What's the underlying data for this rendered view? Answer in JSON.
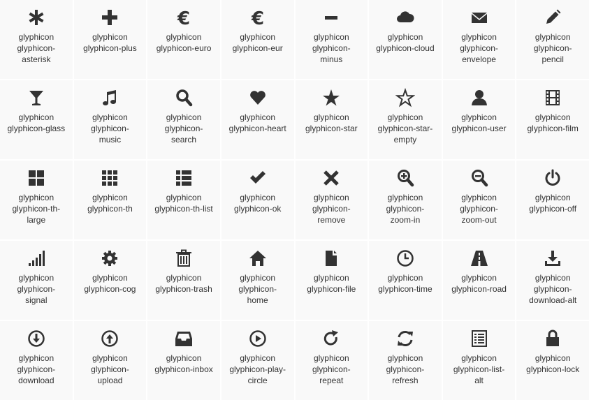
{
  "icons": [
    {
      "name": "asterisk",
      "label": "glyphicon glyphicon-asterisk",
      "lines": [
        "glyphicon",
        "glyphicon-",
        "asterisk"
      ]
    },
    {
      "name": "plus",
      "label": "glyphicon glyphicon-plus",
      "lines": [
        "glyphicon",
        "glyphicon-plus"
      ]
    },
    {
      "name": "euro",
      "label": "glyphicon glyphicon-euro",
      "lines": [
        "glyphicon",
        "glyphicon-euro"
      ]
    },
    {
      "name": "eur",
      "label": "glyphicon glyphicon-eur",
      "lines": [
        "glyphicon",
        "glyphicon-eur"
      ]
    },
    {
      "name": "minus",
      "label": "glyphicon glyphicon-minus",
      "lines": [
        "glyphicon",
        "glyphicon-",
        "minus"
      ]
    },
    {
      "name": "cloud",
      "label": "glyphicon glyphicon-cloud",
      "lines": [
        "glyphicon",
        "glyphicon-cloud"
      ]
    },
    {
      "name": "envelope",
      "label": "glyphicon glyphicon-envelope",
      "lines": [
        "glyphicon",
        "glyphicon-",
        "envelope"
      ]
    },
    {
      "name": "pencil",
      "label": "glyphicon glyphicon-pencil",
      "lines": [
        "glyphicon",
        "glyphicon-",
        "pencil"
      ]
    },
    {
      "name": "glass",
      "label": "glyphicon glyphicon-glass",
      "lines": [
        "glyphicon",
        "glyphicon-glass"
      ]
    },
    {
      "name": "music",
      "label": "glyphicon glyphicon-music",
      "lines": [
        "glyphicon",
        "glyphicon-",
        "music"
      ]
    },
    {
      "name": "search",
      "label": "glyphicon glyphicon-search",
      "lines": [
        "glyphicon",
        "glyphicon-",
        "search"
      ]
    },
    {
      "name": "heart",
      "label": "glyphicon glyphicon-heart",
      "lines": [
        "glyphicon",
        "glyphicon-heart"
      ]
    },
    {
      "name": "star",
      "label": "glyphicon glyphicon-star",
      "lines": [
        "glyphicon",
        "glyphicon-star"
      ]
    },
    {
      "name": "star-empty",
      "label": "glyphicon glyphicon-star-empty",
      "lines": [
        "glyphicon",
        "glyphicon-star-",
        "empty"
      ]
    },
    {
      "name": "user",
      "label": "glyphicon glyphicon-user",
      "lines": [
        "glyphicon",
        "glyphicon-user"
      ]
    },
    {
      "name": "film",
      "label": "glyphicon glyphicon-film",
      "lines": [
        "glyphicon",
        "glyphicon-film"
      ]
    },
    {
      "name": "th-large",
      "label": "glyphicon glyphicon-th-large",
      "lines": [
        "glyphicon",
        "glyphicon-th-",
        "large"
      ]
    },
    {
      "name": "th",
      "label": "glyphicon glyphicon-th",
      "lines": [
        "glyphicon",
        "glyphicon-th"
      ]
    },
    {
      "name": "th-list",
      "label": "glyphicon glyphicon-th-list",
      "lines": [
        "glyphicon",
        "glyphicon-th-list"
      ]
    },
    {
      "name": "ok",
      "label": "glyphicon glyphicon-ok",
      "lines": [
        "glyphicon",
        "glyphicon-ok"
      ]
    },
    {
      "name": "remove",
      "label": "glyphicon glyphicon-remove",
      "lines": [
        "glyphicon",
        "glyphicon-",
        "remove"
      ]
    },
    {
      "name": "zoom-in",
      "label": "glyphicon glyphicon-zoom-in",
      "lines": [
        "glyphicon",
        "glyphicon-",
        "zoom-in"
      ]
    },
    {
      "name": "zoom-out",
      "label": "glyphicon glyphicon-zoom-out",
      "lines": [
        "glyphicon",
        "glyphicon-",
        "zoom-out"
      ]
    },
    {
      "name": "off",
      "label": "glyphicon glyphicon-off",
      "lines": [
        "glyphicon",
        "glyphicon-off"
      ]
    },
    {
      "name": "signal",
      "label": "glyphicon glyphicon-signal",
      "lines": [
        "glyphicon",
        "glyphicon-",
        "signal"
      ]
    },
    {
      "name": "cog",
      "label": "glyphicon glyphicon-cog",
      "lines": [
        "glyphicon",
        "glyphicon-cog"
      ]
    },
    {
      "name": "trash",
      "label": "glyphicon glyphicon-trash",
      "lines": [
        "glyphicon",
        "glyphicon-trash"
      ]
    },
    {
      "name": "home",
      "label": "glyphicon glyphicon-home",
      "lines": [
        "glyphicon",
        "glyphicon-",
        "home"
      ]
    },
    {
      "name": "file",
      "label": "glyphicon glyphicon-file",
      "lines": [
        "glyphicon",
        "glyphicon-file"
      ]
    },
    {
      "name": "time",
      "label": "glyphicon glyphicon-time",
      "lines": [
        "glyphicon",
        "glyphicon-time"
      ]
    },
    {
      "name": "road",
      "label": "glyphicon glyphicon-road",
      "lines": [
        "glyphicon",
        "glyphicon-road"
      ]
    },
    {
      "name": "download-alt",
      "label": "glyphicon glyphicon-download-alt",
      "lines": [
        "glyphicon",
        "glyphicon-",
        "download-alt"
      ]
    },
    {
      "name": "download",
      "label": "glyphicon glyphicon-download",
      "lines": [
        "glyphicon",
        "glyphicon-",
        "download"
      ]
    },
    {
      "name": "upload",
      "label": "glyphicon glyphicon-upload",
      "lines": [
        "glyphicon",
        "glyphicon-",
        "upload"
      ]
    },
    {
      "name": "inbox",
      "label": "glyphicon glyphicon-inbox",
      "lines": [
        "glyphicon",
        "glyphicon-inbox"
      ]
    },
    {
      "name": "play-circle",
      "label": "glyphicon glyphicon-play-circle",
      "lines": [
        "glyphicon",
        "glyphicon-play-",
        "circle"
      ]
    },
    {
      "name": "repeat",
      "label": "glyphicon glyphicon-repeat",
      "lines": [
        "glyphicon",
        "glyphicon-",
        "repeat"
      ]
    },
    {
      "name": "refresh",
      "label": "glyphicon glyphicon-refresh",
      "lines": [
        "glyphicon",
        "glyphicon-",
        "refresh"
      ]
    },
    {
      "name": "list-alt",
      "label": "glyphicon glyphicon-list-alt",
      "lines": [
        "glyphicon",
        "glyphicon-list-",
        "alt"
      ]
    },
    {
      "name": "lock",
      "label": "glyphicon glyphicon-lock",
      "lines": [
        "glyphicon",
        "glyphicon-lock"
      ]
    }
  ],
  "colors": {
    "cell_bg": "#f9f9f9",
    "icon": "#333333",
    "text": "#333333",
    "gap": "#ffffff"
  }
}
